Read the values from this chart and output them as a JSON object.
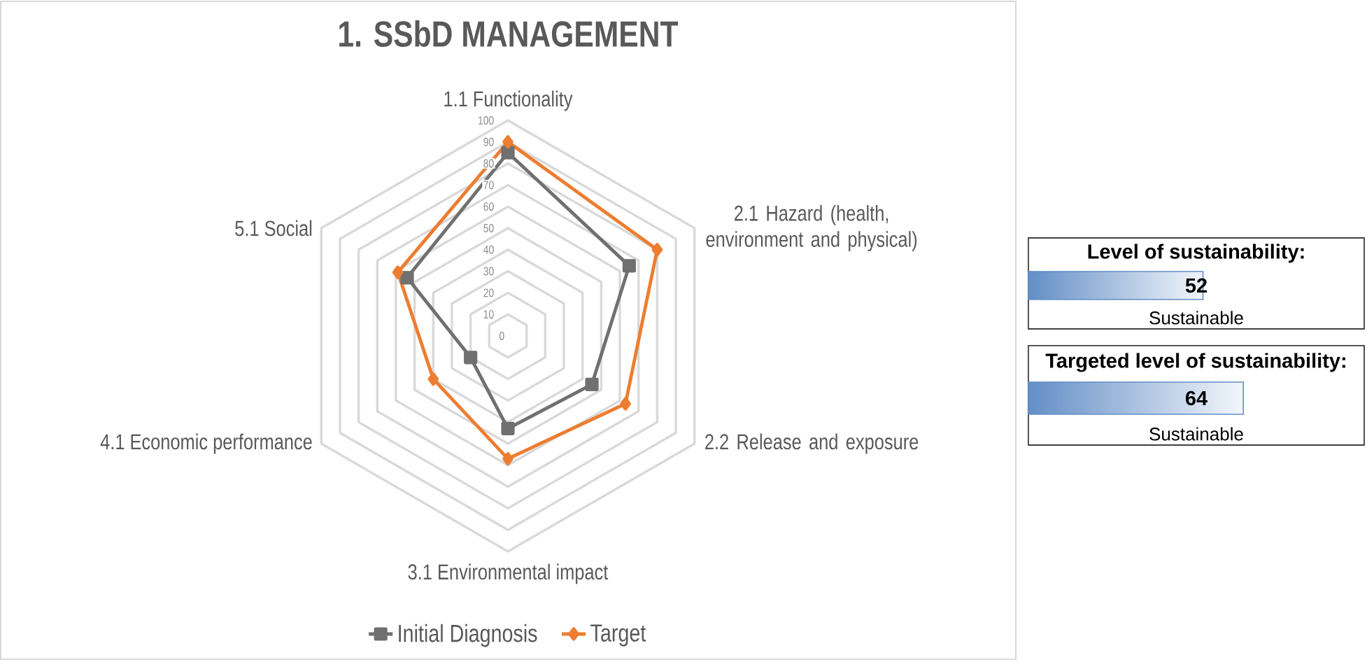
{
  "chart_data": [
    {
      "type": "radar",
      "title": "1. SSbD MANAGEMENT",
      "categories": [
        "1.1 Functionality",
        "2.1 Hazard (health, environment and physical)",
        "2.2 Release and exposure",
        "3.1 Environmental impact",
        "4.1 Economic performance",
        "5.1 Social"
      ],
      "series": [
        {
          "name": "Initial Diagnosis",
          "color": "#707070",
          "marker": "square",
          "values": [
            85,
            65,
            45,
            43,
            20,
            54
          ]
        },
        {
          "name": "Target",
          "color": "#ed7d31",
          "marker": "diamond",
          "values": [
            90,
            80,
            63,
            57,
            40,
            59
          ]
        }
      ],
      "ylim": [
        0,
        100
      ],
      "yticks": [
        0,
        10,
        20,
        30,
        40,
        50,
        60,
        70,
        80,
        90,
        100
      ],
      "grid": true,
      "legend": "bottom"
    },
    {
      "type": "other",
      "title": "Level of sustainability:",
      "values": [
        52
      ],
      "color": "#638ec6",
      "data_labels": true,
      "annotations": [
        "Sustainable"
      ]
    },
    {
      "type": "other",
      "title": "Targeted level of sustainability:",
      "values": [
        64
      ],
      "color": "#638ec6",
      "data_labels": true,
      "annotations": [
        "Sustainable"
      ]
    }
  ]
}
